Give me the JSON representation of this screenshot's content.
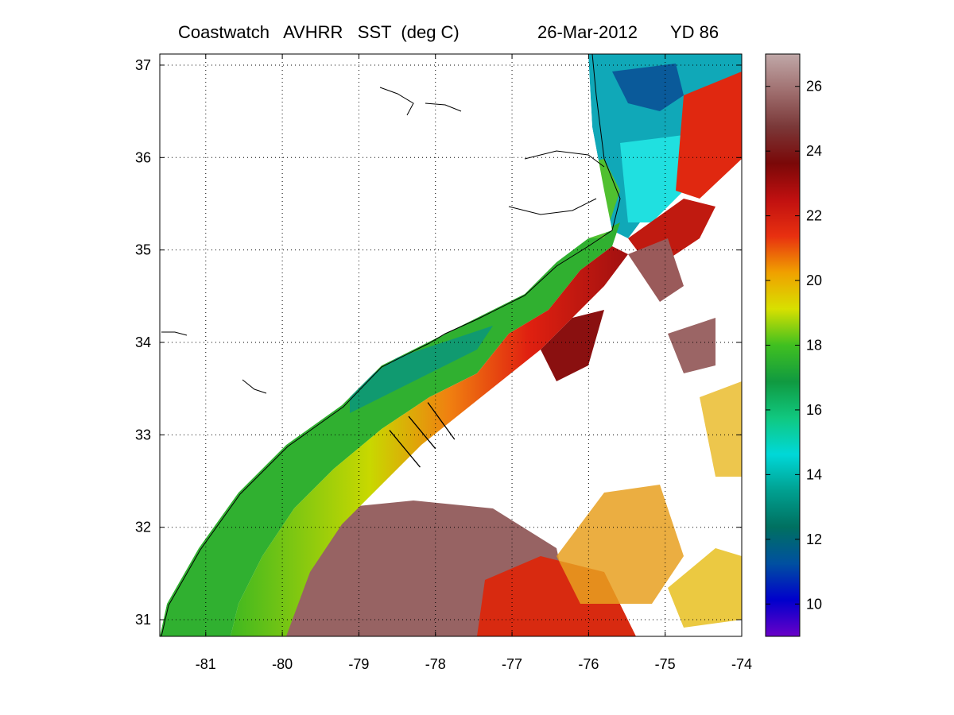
{
  "figure": {
    "title_left": "Coastwatch   AVHRR   SST  (deg C)",
    "title_date": "26-Mar-2012",
    "title_yd": "YD 86"
  },
  "map": {
    "lon_range": [
      -81.6,
      -74.0
    ],
    "lat_range": [
      30.82,
      37.12
    ],
    "lon_ticks": [
      "-81",
      "-80",
      "-79",
      "-78",
      "-77",
      "-76",
      "-75",
      "-74"
    ],
    "lat_ticks": [
      "31",
      "32",
      "33",
      "34",
      "35",
      "36",
      "37"
    ],
    "grid": "dotted"
  },
  "colorbar": {
    "range": [
      9,
      27
    ],
    "ticks": [
      "10",
      "12",
      "14",
      "16",
      "18",
      "20",
      "22",
      "24",
      "26"
    ],
    "colors": [
      "#6a00c8",
      "#0000cc",
      "#0050a0",
      "#007060",
      "#00a090",
      "#00d8d8",
      "#10c880",
      "#109a40",
      "#40c020",
      "#d8e000",
      "#f0a000",
      "#e83010",
      "#c01010",
      "#7a0808",
      "#7a3838",
      "#a07070",
      "#c0a8a8"
    ]
  },
  "transects": [
    {
      "from": [
        -78.6,
        33.05
      ],
      "to": [
        -78.2,
        32.65
      ]
    },
    {
      "from": [
        -78.35,
        33.2
      ],
      "to": [
        -78.0,
        32.85
      ]
    },
    {
      "from": [
        -78.1,
        33.35
      ],
      "to": [
        -77.75,
        32.95
      ]
    }
  ]
}
